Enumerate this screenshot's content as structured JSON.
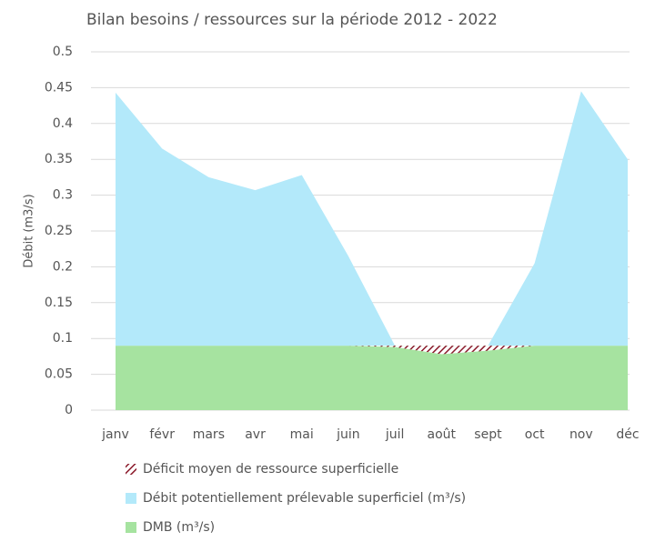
{
  "chart_data": {
    "type": "stacked_area",
    "title": "Bilan besoins / ressources sur la période 2012  - 2022",
    "y_label": "Débit (m3/s)",
    "categories": [
      "janv",
      "févr",
      "mars",
      "avr",
      "mai",
      "juin",
      "juil",
      "août",
      "sept",
      "oct",
      "nov",
      "déc"
    ],
    "ylim": [
      0,
      0.5
    ],
    "yticks": [
      0,
      0.05,
      0.1,
      0.15,
      0.2,
      0.25,
      0.3,
      0.35,
      0.4,
      0.45,
      0.5
    ],
    "grid": true,
    "legend": "bottom",
    "series": [
      {
        "name": "Déficit moyen de ressource superficielle",
        "color": "#8b1a2b",
        "pattern": "hatch",
        "direction": "down",
        "values": [
          0,
          0,
          0,
          0,
          0,
          0,
          0.002,
          0.012,
          0.007,
          0,
          0,
          0
        ]
      },
      {
        "name": "Débit potentiellement prélevable superficiel (m³/s)",
        "color": "#b3e9fa",
        "values": [
          0.353,
          0.275,
          0.235,
          0.217,
          0.238,
          0.125,
          0,
          0,
          0,
          0.115,
          0.355,
          0.26
        ]
      },
      {
        "name": "DMB (m³/s)",
        "color": "#a6e3a0",
        "values": [
          0.09,
          0.09,
          0.09,
          0.09,
          0.09,
          0.09,
          0.09,
          0.09,
          0.09,
          0.09,
          0.09,
          0.09
        ]
      }
    ]
  }
}
